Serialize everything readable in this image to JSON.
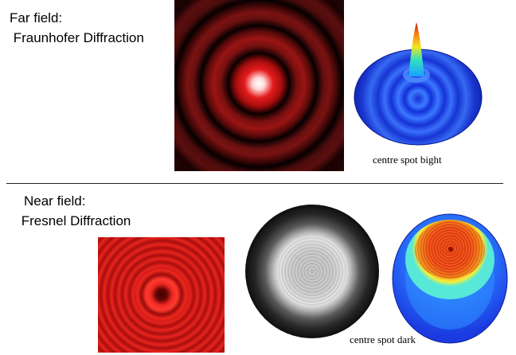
{
  "far_field": {
    "title_line1": "Far field:",
    "title_line2": " Fraunhofer Diffraction",
    "caption": "centre spot bight"
  },
  "near_field": {
    "title_line1": "Near field:",
    "title_line2": " Fresnel Diffraction",
    "caption": "centre spot dark"
  },
  "colors": {
    "pattern_red": "#e0201c",
    "background_black": "#000000",
    "surface_blue": "#1e3fe6",
    "divider": "#222222"
  }
}
